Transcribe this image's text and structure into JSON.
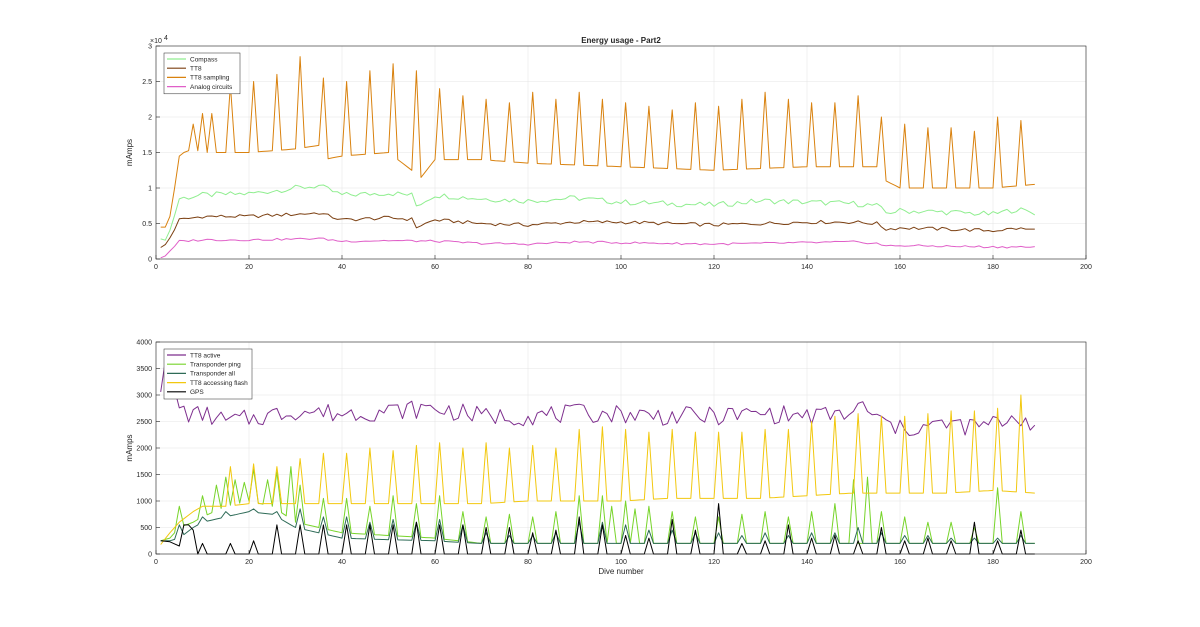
{
  "chart_data": [
    {
      "type": "line",
      "title": "Energy usage - Part2",
      "xlabel": "",
      "ylabel": "mAmps",
      "y_exponent": "×10",
      "y_exponent_power": "4",
      "xlim": [
        0,
        200
      ],
      "ylim": [
        0,
        3
      ],
      "xticks": [
        0,
        20,
        40,
        60,
        80,
        100,
        120,
        140,
        160,
        180,
        200
      ],
      "yticks": [
        0,
        0.5,
        1,
        1.5,
        2,
        2.5,
        3
      ],
      "ytick_labels": [
        "0",
        "0.5",
        "1",
        "1.5",
        "2",
        "2.5",
        "3"
      ],
      "grid": true,
      "legend_location": "top-left",
      "series": [
        {
          "name": "Compass",
          "color": "#90ee90",
          "style": "base",
          "x": [
            1,
            2,
            3,
            5,
            10,
            20,
            30,
            35,
            40,
            50,
            55,
            56,
            60,
            70,
            80,
            90,
            100,
            110,
            120,
            130,
            140,
            150,
            155,
            157,
            160,
            170,
            180,
            185,
            189
          ],
          "values": [
            0.25,
            0.3,
            0.4,
            0.85,
            0.9,
            0.92,
            1.0,
            1.03,
            0.9,
            0.93,
            0.9,
            0.75,
            0.9,
            0.85,
            0.82,
            0.86,
            0.8,
            0.78,
            0.76,
            0.82,
            0.8,
            0.78,
            0.75,
            0.65,
            0.68,
            0.66,
            0.63,
            0.7,
            0.65
          ],
          "jitter": 0.04
        },
        {
          "name": "TT8",
          "color": "#7b3f11",
          "style": "base",
          "x": [
            1,
            2,
            3,
            5,
            10,
            20,
            30,
            35,
            40,
            50,
            55,
            56,
            60,
            70,
            80,
            90,
            100,
            110,
            120,
            130,
            140,
            150,
            155,
            157,
            160,
            170,
            180,
            185,
            189
          ],
          "values": [
            0.15,
            0.2,
            0.3,
            0.55,
            0.6,
            0.6,
            0.63,
            0.65,
            0.55,
            0.58,
            0.56,
            0.45,
            0.55,
            0.5,
            0.48,
            0.52,
            0.52,
            0.5,
            0.48,
            0.5,
            0.52,
            0.52,
            0.5,
            0.42,
            0.44,
            0.42,
            0.4,
            0.43,
            0.41
          ],
          "jitter": 0.025
        },
        {
          "name": "TT8 sampling",
          "color": "#d9820f",
          "style": "spiky",
          "x": [
            1,
            2,
            3,
            4,
            5,
            6,
            8,
            10,
            20,
            30,
            35,
            36,
            40,
            50,
            57,
            60,
            70,
            80,
            100,
            120,
            140,
            155,
            157,
            160,
            170,
            180,
            189
          ],
          "values": [
            0.45,
            0.45,
            0.6,
            1.0,
            1.45,
            1.5,
            1.55,
            1.5,
            1.5,
            1.55,
            1.6,
            1.4,
            1.45,
            1.5,
            1.15,
            1.4,
            1.4,
            1.35,
            1.3,
            1.25,
            1.3,
            1.3,
            1.1,
            1.0,
            1.0,
            1.0,
            1.05
          ],
          "peaks": {
            "start": 8,
            "period": 5,
            "end": 187,
            "x": [
              8,
              16,
              21,
              26,
              31,
              36,
              41,
              46,
              51,
              56,
              61,
              66,
              71,
              76,
              81,
              86,
              91,
              96,
              101,
              106,
              111,
              116,
              121,
              126,
              131,
              136,
              141,
              146,
              151,
              156,
              161,
              166,
              171,
              176,
              181,
              186
            ],
            "values": [
              1.9,
              2.45,
              2.5,
              2.6,
              2.85,
              2.55,
              2.5,
              2.65,
              2.75,
              2.65,
              2.4,
              2.3,
              2.25,
              2.2,
              2.35,
              2.25,
              2.35,
              2.25,
              2.2,
              2.15,
              2.1,
              2.2,
              2.15,
              2.25,
              2.35,
              2.25,
              2.2,
              2.2,
              2.3,
              2.0,
              1.9,
              1.85,
              1.85,
              1.8,
              2.0,
              1.95
            ]
          },
          "extra_peaks": {
            "x": [
              10,
              12
            ],
            "values": [
              2.05,
              2.05
            ]
          }
        },
        {
          "name": "Analog circuits",
          "color": "#e05fc8",
          "style": "base",
          "x": [
            1,
            2,
            3,
            5,
            10,
            20,
            30,
            35,
            40,
            50,
            60,
            70,
            80,
            90,
            100,
            110,
            120,
            130,
            140,
            150,
            155,
            157,
            160,
            170,
            180,
            189
          ],
          "values": [
            0.02,
            0.05,
            0.1,
            0.25,
            0.27,
            0.27,
            0.28,
            0.29,
            0.25,
            0.26,
            0.25,
            0.22,
            0.21,
            0.24,
            0.23,
            0.22,
            0.21,
            0.22,
            0.23,
            0.24,
            0.22,
            0.18,
            0.19,
            0.18,
            0.17,
            0.17
          ],
          "jitter": 0.015
        }
      ]
    },
    {
      "type": "line",
      "title": "",
      "xlabel": "Dive number",
      "ylabel": "mAmps",
      "xlim": [
        0,
        200
      ],
      "ylim": [
        0,
        4000
      ],
      "xticks": [
        0,
        20,
        40,
        60,
        80,
        100,
        120,
        140,
        160,
        180,
        200
      ],
      "yticks": [
        0,
        500,
        1000,
        1500,
        2000,
        2500,
        3000,
        3500,
        4000
      ],
      "ytick_labels": [
        "0",
        "500",
        "1000",
        "1500",
        "2000",
        "2500",
        "3000",
        "3500",
        "4000"
      ],
      "grid": true,
      "legend_location": "top-left",
      "series": [
        {
          "name": "TT8 active",
          "color": "#7e2f8e",
          "style": "base",
          "x": [
            1,
            2,
            3,
            4,
            5,
            6,
            8,
            10,
            15,
            20,
            30,
            40,
            50,
            60,
            70,
            80,
            90,
            100,
            110,
            120,
            130,
            140,
            150,
            152,
            155,
            160,
            165,
            170,
            175,
            180,
            185,
            189
          ],
          "values": [
            3200,
            3500,
            3300,
            3000,
            2800,
            2700,
            2600,
            2650,
            2500,
            2550,
            2700,
            2650,
            2700,
            2750,
            2600,
            2600,
            2650,
            2650,
            2600,
            2600,
            2650,
            2600,
            2650,
            2800,
            2550,
            2350,
            2400,
            2450,
            2400,
            2450,
            2600,
            2450
          ],
          "jitter": 180
        },
        {
          "name": "Transponder ping",
          "color": "#77d42a",
          "style": "spiky",
          "x": [
            1,
            3,
            5,
            8,
            10,
            15,
            20,
            25,
            30,
            35,
            40,
            50,
            60,
            65,
            70,
            80,
            90,
            100,
            110,
            120,
            130,
            140,
            150,
            160,
            170,
            180,
            189
          ],
          "values": [
            250,
            300,
            500,
            600,
            700,
            900,
            1000,
            900,
            600,
            500,
            400,
            350,
            300,
            250,
            200,
            200,
            200,
            200,
            200,
            200,
            200,
            200,
            200,
            200,
            200,
            200,
            200
          ],
          "peaks": {
            "x": [
              5,
              10,
              13,
              15,
              17,
              19,
              21,
              24,
              26,
              29,
              31,
              36,
              41,
              46,
              51,
              56,
              61,
              66,
              71,
              76,
              81,
              86,
              91,
              96,
              98,
              101,
              103,
              106,
              111,
              116,
              121,
              126,
              131,
              136,
              141,
              146,
              150,
              153,
              156,
              161,
              166,
              171,
              176,
              181,
              186
            ],
            "values": [
              900,
              1100,
              1300,
              1450,
              1400,
              1350,
              1600,
              1400,
              1550,
              1650,
              1300,
              1050,
              1050,
              900,
              1100,
              950,
              1100,
              800,
              700,
              750,
              700,
              800,
              1100,
              1100,
              900,
              1000,
              850,
              900,
              800,
              700,
              700,
              750,
              800,
              700,
              800,
              950,
              1400,
              1450,
              800,
              700,
              600,
              600,
              500,
              1250,
              800
            ]
          }
        },
        {
          "name": "Transponder all",
          "color": "#2e6b57",
          "style": "spiky",
          "x": [
            1,
            3,
            5,
            8,
            10,
            15,
            20,
            25,
            30,
            35,
            40,
            50,
            60,
            65,
            70,
            80,
            90,
            100,
            110,
            120,
            130,
            140,
            150,
            160,
            170,
            180,
            189
          ],
          "values": [
            250,
            250,
            300,
            500,
            600,
            700,
            800,
            750,
            500,
            400,
            300,
            270,
            250,
            220,
            200,
            200,
            200,
            200,
            200,
            200,
            200,
            200,
            200,
            200,
            200,
            200,
            200
          ],
          "peaks": {
            "x": [
              5,
              10,
              15,
              21,
              26,
              31,
              36,
              41,
              46,
              51,
              56,
              61,
              66,
              71,
              76,
              81,
              86,
              91,
              96,
              101,
              106,
              111,
              116,
              121,
              126,
              131,
              136,
              141,
              146,
              151,
              156,
              161,
              166,
              171,
              176,
              181,
              186
            ],
            "values": [
              550,
              700,
              800,
              850,
              800,
              850,
              700,
              700,
              600,
              650,
              600,
              650,
              550,
              400,
              350,
              350,
              400,
              600,
              600,
              550,
              450,
              450,
              400,
              400,
              350,
              400,
              350,
              400,
              400,
              500,
              400,
              350,
              350,
              300,
              300,
              300,
              350
            ]
          }
        },
        {
          "name": "TT8 accessing flash",
          "color": "#f2c80f",
          "style": "spiky",
          "x": [
            1,
            3,
            5,
            8,
            10,
            15,
            20,
            25,
            30,
            40,
            50,
            60,
            70,
            80,
            90,
            100,
            110,
            120,
            130,
            140,
            150,
            160,
            170,
            180,
            189
          ],
          "values": [
            180,
            400,
            600,
            800,
            900,
            900,
            950,
            950,
            950,
            950,
            950,
            950,
            950,
            1000,
            1000,
            1000,
            1050,
            1050,
            1050,
            1100,
            1150,
            1150,
            1150,
            1200,
            1150
          ],
          "peaks": {
            "x": [
              16,
              21,
              26,
              31,
              36,
              41,
              46,
              51,
              56,
              61,
              66,
              71,
              76,
              81,
              86,
              91,
              96,
              101,
              106,
              111,
              116,
              121,
              126,
              131,
              136,
              141,
              146,
              151,
              156,
              161,
              166,
              171,
              176,
              181,
              186
            ],
            "values": [
              1650,
              1700,
              1650,
              1800,
              1900,
              1900,
              2000,
              1950,
              2050,
              2100,
              2000,
              2100,
              2000,
              2050,
              2000,
              2350,
              2400,
              2350,
              2300,
              2350,
              2300,
              2300,
              2300,
              2350,
              2350,
              2500,
              2600,
              2650,
              2600,
              2600,
              2650,
              2700,
              2700,
              2750,
              3000
            ]
          }
        },
        {
          "name": "GPS",
          "color": "#000000",
          "style": "spiky",
          "x": [
            1,
            3,
            5,
            6,
            7,
            189
          ],
          "values": [
            250,
            230,
            150,
            0,
            0,
            0
          ],
          "peaks": {
            "x": [
              6,
              7,
              8,
              10,
              16,
              21,
              26,
              31,
              36,
              41,
              46,
              51,
              56,
              61,
              66,
              71,
              76,
              81,
              86,
              91,
              96,
              101,
              106,
              111,
              116,
              121,
              126,
              131,
              136,
              141,
              146,
              151,
              156,
              161,
              166,
              171,
              176,
              181,
              186
            ],
            "values": [
              550,
              550,
              450,
              200,
              200,
              250,
              550,
              550,
              550,
              550,
              550,
              550,
              600,
              550,
              550,
              500,
              500,
              400,
              450,
              700,
              550,
              350,
              300,
              650,
              450,
              950,
              200,
              250,
              550,
              300,
              350,
              250,
              500,
              250,
              300,
              250,
              600,
              250,
              450
            ]
          }
        }
      ]
    }
  ]
}
